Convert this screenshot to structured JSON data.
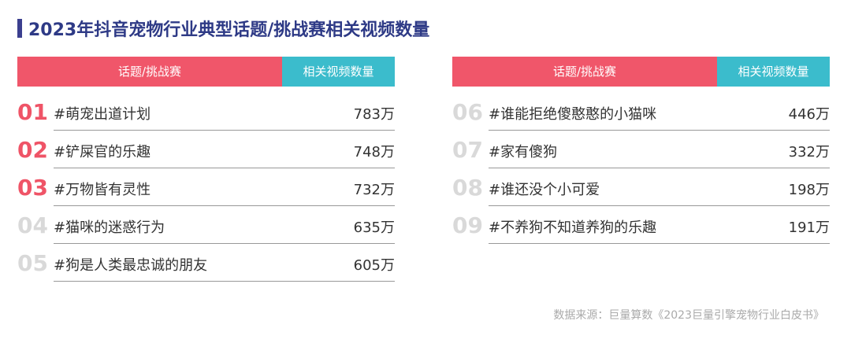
{
  "title": "2023年抖音宠物行业典型话题/挑战赛相关视频数量",
  "tables": [
    {
      "header": [
        "话题/挑战赛",
        "相关视频数量"
      ],
      "rows": [
        [
          "01",
          "#萌宠出道计划",
          "783万"
        ],
        [
          "02",
          "#铲屎官的乐趣",
          "748万"
        ],
        [
          "03",
          "#万物皆有灵性",
          "732万"
        ],
        [
          "04",
          "#猫咪的迷惑行为",
          "635万"
        ],
        [
          "05",
          "#狗是人类最忠诚的朋友",
          "605万"
        ]
      ]
    },
    {
      "header": [
        "话题/挑战赛",
        "相关视频数量"
      ],
      "rows": [
        [
          "06",
          "#谁能拒绝傻憨憨的小猫咪",
          "446万"
        ],
        [
          "07",
          "#家有傻狗",
          "332万"
        ],
        [
          "08",
          "#谁还没个小可爱",
          "198万"
        ],
        [
          "09",
          "#不养狗不知道养狗的乐趣",
          "191万"
        ]
      ]
    }
  ],
  "source": "数据来源：巨量算数《2023巨量引擎宠物行业白皮书》"
}
